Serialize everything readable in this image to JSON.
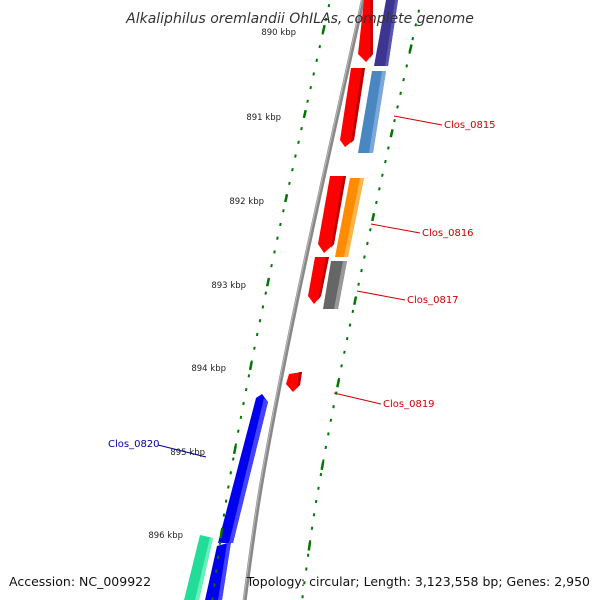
{
  "title": "Alkaliphilus oremlandii OhILAs, complete genome",
  "footer": {
    "accession": "Accession: NC_009922",
    "topology": "Topology: circular; Length: 3,123,558 bp; Genes: 2,950"
  },
  "colors": {
    "backbone": "#888888",
    "tick": "#007700",
    "label_red": "#cc0000",
    "label_blue": "#000099",
    "gene_red": "#ff0000",
    "gene_blue": "#0000ee",
    "gene_steelblue": "#4a86c0",
    "gene_orange": "#ff8c00",
    "gene_gray": "#666666",
    "gene_purple": "#3d3590",
    "gene_mint": "#22dd99"
  },
  "kbp_labels": [
    "890 kbp",
    "891 kbp",
    "892 kbp",
    "893 kbp",
    "894 kbp",
    "895 kbp",
    "896 kbp"
  ],
  "gene_labels": [
    {
      "id": "Clos_0815",
      "color": "#cc0000"
    },
    {
      "id": "Clos_0816",
      "color": "#cc0000"
    },
    {
      "id": "Clos_0817",
      "color": "#cc0000"
    },
    {
      "id": "Clos_0819",
      "color": "#cc0000"
    },
    {
      "id": "Clos_0820",
      "color": "#000099"
    }
  ]
}
